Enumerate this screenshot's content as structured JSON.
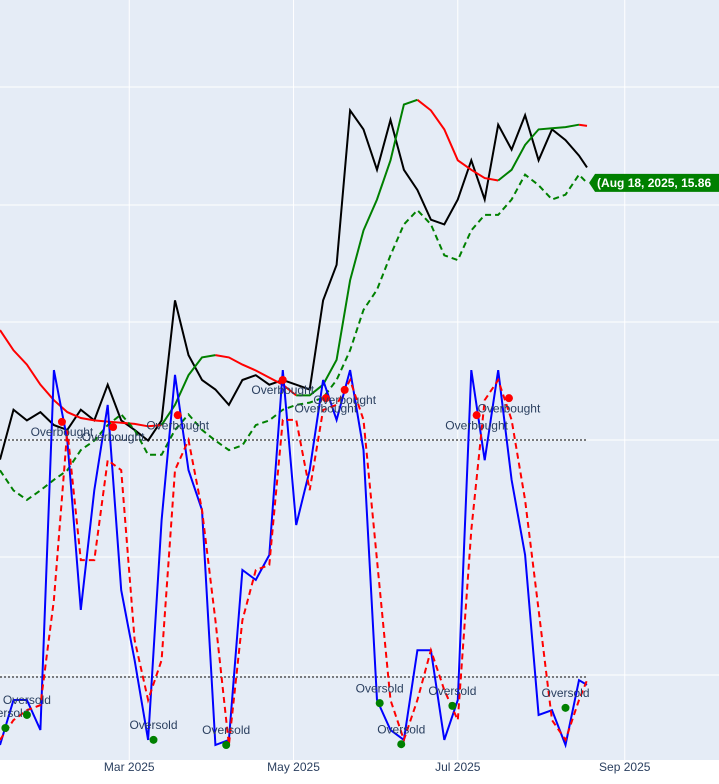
{
  "chart_data": {
    "type": "line",
    "x": [
      "2025-01-12",
      "2025-01-17",
      "2025-01-22",
      "2025-01-27",
      "2025-02-01",
      "2025-02-06",
      "2025-02-11",
      "2025-02-16",
      "2025-02-21",
      "2025-02-26",
      "2025-03-03",
      "2025-03-08",
      "2025-03-13",
      "2025-03-18",
      "2025-03-23",
      "2025-03-28",
      "2025-04-02",
      "2025-04-07",
      "2025-04-12",
      "2025-04-17",
      "2025-04-22",
      "2025-04-27",
      "2025-05-02",
      "2025-05-07",
      "2025-05-12",
      "2025-05-17",
      "2025-05-22",
      "2025-05-27",
      "2025-06-01",
      "2025-06-06",
      "2025-06-11",
      "2025-06-16",
      "2025-06-21",
      "2025-06-26",
      "2025-07-01",
      "2025-07-06",
      "2025-07-11",
      "2025-07-16",
      "2025-07-21",
      "2025-07-26",
      "2025-07-31",
      "2025-08-05",
      "2025-08-10",
      "2025-08-15",
      "2025-08-18"
    ],
    "xlim": [
      "2025-01-12",
      "2025-10-06"
    ],
    "xticks": [
      {
        "value": "2025-03-01",
        "label": "Mar 2025"
      },
      {
        "value": "2025-05-01",
        "label": "May 2025"
      },
      {
        "value": "2025-07-01",
        "label": "Jul 2025"
      },
      {
        "value": "2025-09-01",
        "label": "Sep 2025"
      }
    ],
    "ylim": [
      11,
      17.4
    ],
    "y2lim": [
      -1,
      191.4
    ],
    "series": [
      {
        "color": "#000000",
        "dash": false,
        "values": [
          13.53,
          13.95,
          13.86,
          13.93,
          13.82,
          13.78,
          13.95,
          13.86,
          14.16,
          13.86,
          13.78,
          13.69,
          13.86,
          14.87,
          14.41,
          14.2,
          14.12,
          13.99,
          14.2,
          14.24,
          14.16,
          14.2,
          14.16,
          14.12,
          14.87,
          15.17,
          16.47,
          16.31,
          15.97,
          16.39,
          15.97,
          15.8,
          15.55,
          15.51,
          15.72,
          16.05,
          15.72,
          16.35,
          16.14,
          16.43,
          16.05,
          16.31,
          16.22,
          16.09,
          15.99
        ]
      },
      {
        "color": "#ff0000",
        "dash": false,
        "values": [
          14.62,
          14.45,
          14.33,
          14.16,
          14.03,
          13.93,
          13.88,
          13.86,
          13.85,
          13.84,
          13.83,
          13.81,
          13.82,
          null,
          null,
          null,
          14.41,
          14.39,
          14.33,
          14.28,
          14.22,
          14.16,
          14.07,
          null,
          null,
          null,
          null,
          null,
          null,
          null,
          null,
          16.56,
          16.47,
          16.31,
          16.05,
          15.97,
          15.9,
          15.88,
          null,
          null,
          null,
          null,
          null,
          16.35,
          16.34
        ]
      },
      {
        "color": "#008000",
        "dash": false,
        "values": [
          null,
          null,
          null,
          null,
          null,
          null,
          null,
          null,
          null,
          null,
          null,
          null,
          13.82,
          13.99,
          14.24,
          14.39,
          14.41,
          null,
          null,
          null,
          null,
          null,
          14.07,
          14.07,
          14.16,
          14.37,
          15.04,
          15.46,
          15.72,
          16.05,
          16.52,
          16.56,
          null,
          null,
          null,
          null,
          null,
          15.88,
          15.97,
          16.18,
          16.31,
          16.32,
          16.33,
          16.35,
          null
        ]
      },
      {
        "color": "#008000",
        "dash": true,
        "values": [
          13.44,
          13.27,
          13.19,
          13.27,
          13.36,
          13.44,
          13.61,
          13.69,
          13.82,
          13.91,
          13.78,
          13.57,
          13.57,
          13.78,
          13.91,
          13.78,
          13.69,
          13.61,
          13.65,
          13.82,
          13.86,
          13.95,
          13.99,
          14.01,
          14.05,
          14.2,
          14.45,
          14.79,
          14.96,
          15.25,
          15.51,
          15.63,
          15.51,
          15.25,
          15.21,
          15.46,
          15.59,
          15.59,
          15.72,
          15.93,
          15.84,
          15.72,
          15.76,
          15.93,
          15.86
        ]
      },
      {
        "color": "#0000ff",
        "dash": false,
        "axis": "y2",
        "values": [
          2.8,
          14.2,
          14.2,
          6.6,
          97.7,
          80.0,
          37.0,
          67.3,
          88.9,
          42.0,
          24.3,
          4.1,
          59.7,
          96.5,
          72.4,
          62.3,
          2.8,
          4.1,
          47.1,
          44.6,
          50.9,
          97.7,
          58.5,
          72.4,
          95.2,
          85.1,
          97.7,
          77.5,
          14.2,
          6.6,
          4.1,
          26.8,
          26.8,
          4.1,
          14.2,
          97.7,
          74.9,
          97.7,
          69.9,
          50.9,
          10.4,
          11.6,
          2.8,
          19.2,
          18.0
        ]
      },
      {
        "color": "#ff0000",
        "dash": true,
        "axis": "y2",
        "values": [
          4.1,
          9.1,
          11.6,
          12.9,
          39.5,
          82.5,
          49.6,
          49.6,
          74.9,
          72.4,
          29.4,
          14.2,
          24.3,
          72.4,
          80.0,
          62.3,
          34.4,
          2.8,
          34.4,
          47.1,
          48.4,
          85.1,
          85.1,
          67.3,
          87.6,
          88.9,
          95.2,
          85.1,
          49.6,
          14.2,
          4.1,
          14.2,
          26.8,
          16.7,
          9.1,
          57.2,
          90.1,
          95.2,
          85.1,
          64.8,
          37.0,
          9.1,
          4.1,
          14.2,
          19.2
        ]
      }
    ],
    "hlines": [
      {
        "value": 80,
        "axis": "y2"
      },
      {
        "value": 20,
        "axis": "y2"
      }
    ],
    "signals": [
      {
        "label": "Overbought",
        "color": "#ff0000",
        "axis": "y2",
        "x": [
          "2025-02-04",
          "2025-02-23",
          "2025-03-19",
          "2025-04-27",
          "2025-05-13",
          "2025-05-20",
          "2025-07-08",
          "2025-07-20"
        ],
        "values": [
          84.6,
          83.3,
          86.3,
          95.2,
          90.6,
          92.7,
          86.3,
          90.6
        ]
      },
      {
        "label": "Oversold",
        "color": "#008000",
        "axis": "y2",
        "x": [
          "2025-01-14",
          "2025-01-22",
          "2025-03-10",
          "2025-04-06",
          "2025-06-02",
          "2025-06-10",
          "2025-06-29",
          "2025-08-10"
        ],
        "values": [
          7.1,
          10.4,
          4.1,
          2.8,
          13.4,
          3.0,
          12.7,
          12.2
        ]
      }
    ],
    "hover_label": "(Aug 18, 2025, 15.86"
  }
}
